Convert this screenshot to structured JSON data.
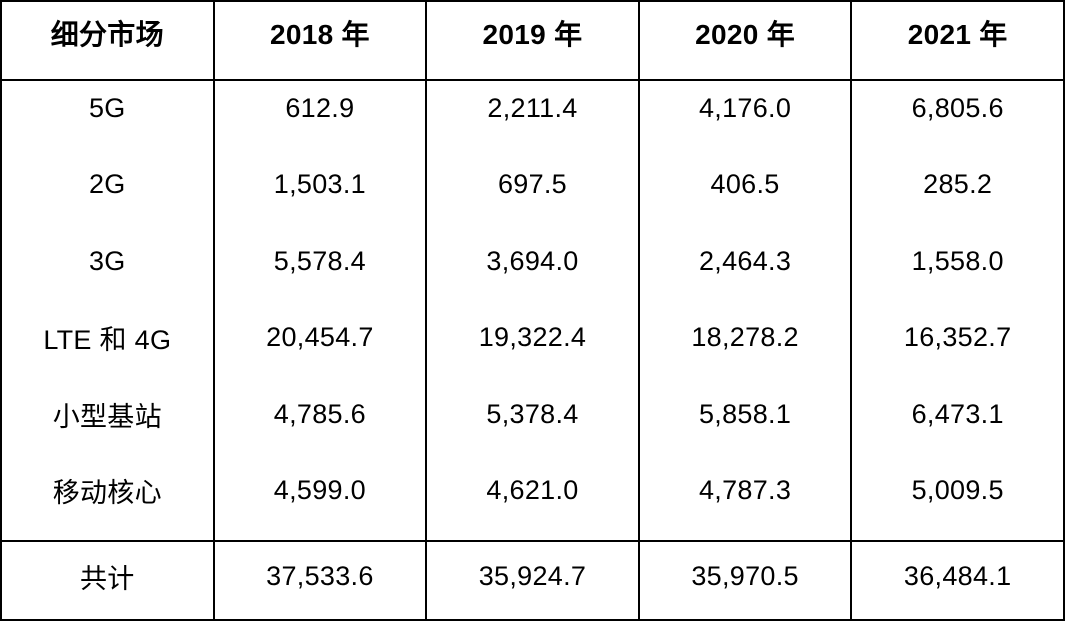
{
  "colors": {
    "border": "#000000",
    "text": "#000000",
    "background": "#ffffff"
  },
  "chart_data": {
    "type": "table",
    "columns": [
      "细分市场",
      "2018 年",
      "2019 年",
      "2020 年",
      "2021 年"
    ],
    "rows": [
      {
        "label": "5G",
        "values": [
          "612.9",
          "2,211.4",
          "4,176.0",
          "6,805.6"
        ]
      },
      {
        "label": "2G",
        "values": [
          "1,503.1",
          "697.5",
          "406.5",
          "285.2"
        ]
      },
      {
        "label": "3G",
        "values": [
          "5,578.4",
          "3,694.0",
          "2,464.3",
          "1,558.0"
        ]
      },
      {
        "label": "LTE 和 4G",
        "values": [
          "20,454.7",
          "19,322.4",
          "18,278.2",
          "16,352.7"
        ]
      },
      {
        "label": "小型基站",
        "values": [
          "4,785.6",
          "5,378.4",
          "5,858.1",
          "6,473.1"
        ]
      },
      {
        "label": "移动核心",
        "values": [
          "4,599.0",
          "4,621.0",
          "4,787.3",
          "5,009.5"
        ]
      }
    ],
    "total": {
      "label": "共计",
      "values": [
        "37,533.6",
        "35,924.7",
        "35,970.5",
        "36,484.1"
      ]
    }
  }
}
